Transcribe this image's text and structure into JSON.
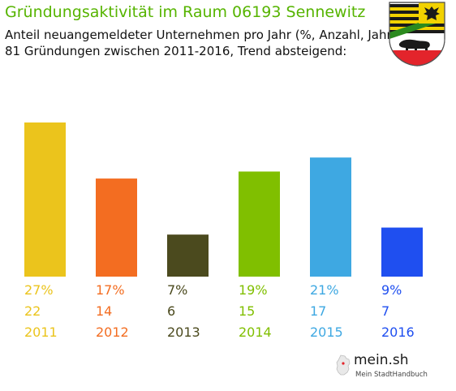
{
  "header": {
    "title": "Gründungsaktivität im Raum 06193 Sennewitz",
    "subtitle_line1": "Anteil neuangemeldeter Unternehmen pro Jahr (%, Anzahl, Jahr)",
    "subtitle_line2": "81 Gründungen zwischen 2011-2016, Trend absteigend:"
  },
  "chart_data": {
    "type": "bar",
    "categories": [
      "2011",
      "2012",
      "2013",
      "2014",
      "2015",
      "2016"
    ],
    "values": [
      22,
      14,
      6,
      15,
      17,
      7
    ],
    "percent_labels": [
      "27%",
      "17%",
      "7%",
      "19%",
      "21%",
      "9%"
    ],
    "count_labels": [
      "22",
      "14",
      "6",
      "15",
      "17",
      "7"
    ],
    "colors": [
      "#ebc41c",
      "#f36d21",
      "#4b4a1e",
      "#80bf00",
      "#3ea8e2",
      "#1f4ff0"
    ],
    "ylim": [
      0,
      22
    ],
    "grid": false,
    "legend": "none"
  },
  "branding": {
    "site_name": "mein.sh",
    "tagline": "Mein StadtHandbuch"
  }
}
